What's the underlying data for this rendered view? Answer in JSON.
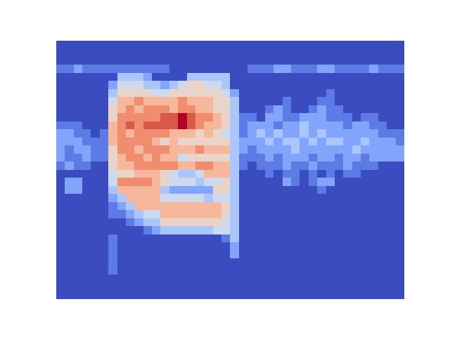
{
  "chart_data": {
    "type": "heatmap",
    "tick_labels": false,
    "cells": [
      [
        0,
        0,
        0,
        0,
        0,
        0,
        0,
        0,
        0,
        0,
        0,
        0,
        0,
        0,
        0,
        0,
        0,
        0,
        0,
        0,
        0,
        0,
        0,
        0,
        0,
        0,
        0,
        0,
        0,
        0,
        0,
        0,
        0,
        0,
        0,
        0,
        0,
        0,
        0,
        0
      ],
      [
        0,
        0,
        0,
        0,
        0,
        0,
        0,
        0,
        0,
        0,
        0,
        0,
        0,
        0,
        0,
        0,
        0,
        0,
        0,
        0,
        0,
        0,
        0,
        0,
        0,
        0,
        0,
        0,
        0,
        0,
        0,
        0,
        0,
        0,
        0,
        0,
        0,
        0,
        0,
        0
      ],
      [
        0,
        0,
        0,
        0,
        0,
        0,
        0,
        0,
        0,
        0,
        0,
        0,
        0,
        0,
        0,
        0,
        0,
        0,
        0,
        0,
        0,
        0,
        0,
        0,
        0,
        0,
        0,
        0,
        0,
        0,
        0,
        0,
        0,
        0,
        0,
        0,
        0,
        0,
        0,
        0
      ],
      [
        1,
        1,
        2,
        1,
        1,
        1,
        1,
        1,
        1,
        1,
        1,
        1,
        1,
        0,
        0,
        0,
        0,
        0,
        0,
        0,
        0,
        0,
        1,
        1,
        1,
        2,
        2,
        1,
        1,
        1,
        2,
        2,
        1,
        1,
        1,
        1,
        2,
        1,
        1,
        1
      ],
      [
        0,
        0,
        0,
        0,
        0,
        0,
        0,
        3,
        3,
        3,
        2,
        0,
        0,
        0,
        0,
        3,
        3,
        3,
        3,
        3,
        0,
        0,
        0,
        0,
        0,
        0,
        0,
        0,
        0,
        0,
        0,
        0,
        0,
        0,
        0,
        0,
        0,
        0,
        0,
        0
      ],
      [
        0,
        0,
        0,
        0,
        0,
        0,
        2,
        4,
        4,
        4,
        3,
        3,
        2,
        3,
        4,
        5,
        5,
        4,
        4,
        3,
        0,
        0,
        0,
        0,
        0,
        0,
        0,
        0,
        0,
        0,
        0,
        0,
        0,
        0,
        0,
        0,
        0,
        0,
        0,
        0
      ],
      [
        0,
        0,
        0,
        0,
        0,
        0,
        3,
        5,
        5,
        5,
        5,
        4,
        4,
        5,
        5,
        5,
        5,
        5,
        5,
        4,
        2,
        0,
        0,
        0,
        0,
        0,
        0,
        0,
        0,
        0,
        0,
        1,
        0,
        0,
        0,
        0,
        0,
        0,
        0,
        0
      ],
      [
        0,
        0,
        0,
        0,
        0,
        0,
        4,
        6,
        6,
        7,
        6,
        6,
        6,
        6,
        7,
        6,
        6,
        6,
        5,
        5,
        3,
        0,
        0,
        0,
        0,
        0,
        1,
        0,
        0,
        0,
        1,
        1,
        0,
        0,
        0,
        0,
        0,
        0,
        0,
        0
      ],
      [
        0,
        0,
        0,
        0,
        0,
        0,
        5,
        6,
        7,
        6,
        7,
        7,
        7,
        6,
        7,
        7,
        6,
        6,
        5,
        5,
        3,
        0,
        0,
        0,
        1,
        2,
        1,
        0,
        0,
        1,
        2,
        1,
        1,
        0,
        0,
        0,
        0,
        0,
        0,
        0
      ],
      [
        0,
        0,
        0,
        0,
        0,
        0,
        5,
        7,
        7,
        7,
        7,
        7,
        8,
        8,
        9,
        8,
        7,
        7,
        6,
        5,
        3,
        1,
        1,
        0,
        2,
        2,
        1,
        1,
        2,
        2,
        2,
        1,
        1,
        1,
        0,
        1,
        1,
        0,
        0,
        0
      ],
      [
        1,
        1,
        1,
        0,
        0,
        0,
        6,
        7,
        8,
        7,
        8,
        8,
        8,
        8,
        9,
        8,
        7,
        6,
        6,
        5,
        3,
        1,
        2,
        2,
        2,
        1,
        2,
        2,
        3,
        2,
        2,
        2,
        2,
        1,
        2,
        2,
        1,
        1,
        0,
        0
      ],
      [
        2,
        2,
        1,
        1,
        0,
        1,
        6,
        7,
        6,
        7,
        7,
        7,
        7,
        6,
        6,
        6,
        5,
        6,
        5,
        4,
        3,
        1,
        2,
        3,
        2,
        3,
        2,
        2,
        3,
        2,
        3,
        2,
        2,
        2,
        2,
        2,
        2,
        1,
        1,
        1
      ],
      [
        2,
        2,
        2,
        1,
        1,
        1,
        6,
        7,
        7,
        7,
        7,
        6,
        5,
        6,
        5,
        5,
        5,
        5,
        5,
        5,
        3,
        2,
        2,
        2,
        3,
        2,
        3,
        3,
        2,
        3,
        2,
        3,
        3,
        2,
        2,
        3,
        2,
        2,
        2,
        1
      ],
      [
        2,
        1,
        2,
        2,
        1,
        1,
        5,
        7,
        7,
        6,
        7,
        7,
        7,
        6,
        6,
        6,
        7,
        6,
        6,
        6,
        3,
        2,
        1,
        2,
        2,
        2,
        2,
        3,
        2,
        2,
        2,
        2,
        2,
        2,
        3,
        2,
        2,
        2,
        2,
        2
      ],
      [
        2,
        1,
        1,
        2,
        1,
        1,
        5,
        6,
        7,
        7,
        6,
        7,
        6,
        6,
        4,
        5,
        5,
        5,
        5,
        5,
        3,
        1,
        1,
        1,
        2,
        1,
        2,
        2,
        2,
        1,
        2,
        2,
        1,
        2,
        2,
        1,
        2,
        2,
        2,
        2
      ],
      [
        1,
        2,
        1,
        1,
        0,
        0,
        5,
        6,
        6,
        7,
        7,
        7,
        7,
        7,
        6,
        6,
        7,
        7,
        6,
        6,
        3,
        1,
        0,
        1,
        1,
        1,
        2,
        1,
        1,
        2,
        1,
        1,
        1,
        2,
        1,
        1,
        1,
        0,
        0,
        0
      ],
      [
        0,
        0,
        0,
        0,
        0,
        0,
        4,
        5,
        5,
        6,
        6,
        6,
        5,
        4,
        3,
        3,
        4,
        6,
        6,
        6,
        3,
        0,
        0,
        0,
        1,
        0,
        1,
        1,
        0,
        1,
        0,
        1,
        0,
        1,
        1,
        0,
        0,
        0,
        0,
        0
      ],
      [
        0,
        2,
        2,
        0,
        0,
        0,
        4,
        7,
        7,
        7,
        7,
        6,
        5,
        4,
        4,
        4,
        3,
        4,
        4,
        5,
        3,
        0,
        0,
        0,
        0,
        0,
        2,
        1,
        0,
        1,
        2,
        2,
        0,
        0,
        0,
        0,
        0,
        0,
        0,
        0
      ],
      [
        0,
        2,
        2,
        0,
        0,
        0,
        3,
        6,
        6,
        6,
        6,
        6,
        3,
        2,
        2,
        2,
        2,
        2,
        5,
        5,
        3,
        0,
        0,
        0,
        0,
        0,
        0,
        0,
        0,
        0,
        1,
        0,
        0,
        0,
        0,
        0,
        0,
        0,
        0,
        0
      ],
      [
        0,
        0,
        0,
        0,
        0,
        0,
        2,
        3,
        6,
        6,
        6,
        6,
        4,
        4,
        4,
        4,
        4,
        3,
        4,
        4,
        3,
        0,
        0,
        0,
        0,
        0,
        0,
        0,
        0,
        0,
        0,
        0,
        0,
        0,
        0,
        0,
        0,
        0,
        0,
        0
      ],
      [
        0,
        0,
        0,
        0,
        0,
        0,
        1,
        2,
        3,
        6,
        6,
        6,
        6,
        6,
        6,
        6,
        6,
        6,
        6,
        5,
        3,
        0,
        0,
        0,
        0,
        0,
        0,
        0,
        0,
        0,
        0,
        0,
        0,
        0,
        0,
        0,
        0,
        0,
        0,
        0
      ],
      [
        0,
        0,
        0,
        0,
        0,
        0,
        1,
        1,
        2,
        3,
        4,
        4,
        6,
        6,
        6,
        6,
        6,
        6,
        6,
        5,
        3,
        0,
        0,
        0,
        0,
        0,
        0,
        0,
        0,
        0,
        0,
        0,
        0,
        0,
        0,
        0,
        0,
        0,
        0,
        0
      ],
      [
        0,
        0,
        0,
        0,
        0,
        0,
        0,
        0,
        1,
        2,
        3,
        3,
        5,
        5,
        5,
        5,
        5,
        5,
        5,
        4,
        3,
        0,
        0,
        0,
        0,
        0,
        0,
        0,
        0,
        0,
        0,
        0,
        0,
        0,
        0,
        0,
        0,
        0,
        0,
        0
      ],
      [
        0,
        0,
        0,
        0,
        0,
        0,
        0,
        0,
        0,
        0,
        1,
        2,
        3,
        3,
        3,
        3,
        3,
        3,
        4,
        4,
        3,
        0,
        0,
        0,
        0,
        0,
        0,
        0,
        0,
        0,
        0,
        0,
        0,
        0,
        0,
        0,
        0,
        0,
        0,
        0
      ],
      [
        0,
        0,
        0,
        0,
        0,
        0,
        1,
        0,
        0,
        0,
        0,
        0,
        0,
        0,
        0,
        0,
        0,
        0,
        0,
        1,
        3,
        0,
        0,
        0,
        0,
        0,
        0,
        0,
        0,
        0,
        0,
        0,
        0,
        0,
        0,
        0,
        0,
        0,
        0,
        0
      ],
      [
        0,
        0,
        0,
        0,
        0,
        0,
        1,
        0,
        0,
        0,
        0,
        0,
        0,
        0,
        0,
        0,
        0,
        0,
        0,
        0,
        2,
        0,
        0,
        0,
        0,
        0,
        0,
        0,
        0,
        0,
        0,
        0,
        0,
        0,
        0,
        0,
        0,
        0,
        0,
        0
      ],
      [
        0,
        0,
        0,
        0,
        0,
        0,
        1,
        0,
        0,
        0,
        0,
        0,
        0,
        0,
        0,
        0,
        0,
        0,
        0,
        0,
        2,
        0,
        0,
        0,
        0,
        0,
        0,
        0,
        0,
        0,
        0,
        0,
        0,
        0,
        0,
        0,
        0,
        0,
        0,
        0
      ],
      [
        0,
        0,
        0,
        0,
        0,
        0,
        1,
        0,
        0,
        0,
        0,
        0,
        0,
        0,
        0,
        0,
        0,
        0,
        0,
        0,
        0,
        0,
        0,
        0,
        0,
        0,
        0,
        0,
        0,
        0,
        0,
        0,
        0,
        0,
        0,
        0,
        0,
        0,
        0,
        0
      ],
      [
        0,
        0,
        0,
        0,
        0,
        0,
        1,
        0,
        0,
        0,
        0,
        0,
        0,
        0,
        0,
        0,
        0,
        0,
        0,
        0,
        0,
        0,
        0,
        0,
        0,
        0,
        0,
        0,
        0,
        0,
        0,
        0,
        0,
        0,
        0,
        0,
        0,
        0,
        0,
        0
      ],
      [
        0,
        0,
        0,
        0,
        0,
        0,
        0,
        0,
        0,
        0,
        0,
        0,
        0,
        0,
        0,
        0,
        0,
        0,
        0,
        0,
        0,
        0,
        0,
        0,
        0,
        0,
        0,
        0,
        0,
        0,
        0,
        0,
        0,
        0,
        0,
        0,
        0,
        0,
        0,
        0
      ],
      [
        0,
        0,
        0,
        0,
        0,
        0,
        0,
        0,
        0,
        0,
        0,
        0,
        0,
        0,
        0,
        0,
        0,
        0,
        0,
        0,
        0,
        0,
        0,
        0,
        0,
        0,
        0,
        0,
        0,
        0,
        0,
        0,
        0,
        0,
        0,
        0,
        0,
        0,
        0,
        0
      ],
      [
        0,
        0,
        0,
        0,
        0,
        0,
        0,
        0,
        0,
        0,
        0,
        0,
        0,
        0,
        0,
        0,
        0,
        0,
        0,
        0,
        0,
        0,
        0,
        0,
        0,
        0,
        0,
        0,
        0,
        0,
        0,
        0,
        0,
        0,
        0,
        0,
        0,
        0,
        0,
        0
      ]
    ]
  }
}
